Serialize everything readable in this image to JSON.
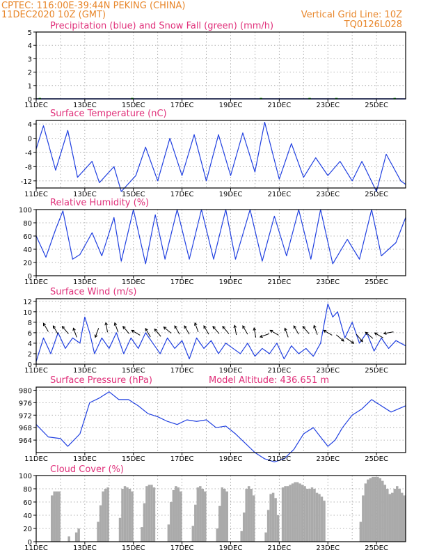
{
  "header": {
    "station": "CPTEC:   116:00E-39:44N   PEKING (CHINA)",
    "run": "11DEC2020 10Z (GMT)",
    "grid_note": "Vertical Grid Line: 10Z",
    "code": "TQ0126L028"
  },
  "colors": {
    "line": "#1f3fe0",
    "snow": "#20a020",
    "cloud": "#aaaaaa",
    "arrow": "#000000",
    "title": "#e0307a",
    "header": "#e8862a"
  },
  "x_axis": {
    "tick_labels": [
      "11DEC",
      "13DEC",
      "15DEC",
      "17DEC",
      "19DEC",
      "21DEC",
      "23DEC",
      "25DEC"
    ],
    "tick_days": [
      11,
      13,
      15,
      17,
      19,
      21,
      23,
      25
    ],
    "grid_days": [
      12,
      13,
      14,
      15,
      16,
      17,
      18,
      19,
      20,
      21,
      22,
      23,
      24,
      25
    ],
    "range": [
      11,
      26.2
    ]
  },
  "chart_data": [
    {
      "type": "line",
      "title": "Precipitation (blue) and Snow Fall (green) (mm/h)",
      "ylim": [
        0,
        5
      ],
      "yticks": [
        0,
        1,
        2,
        3,
        4,
        5
      ],
      "series": [
        {
          "name": "Precipitation",
          "x": [
            11,
            26.2
          ],
          "values": [
            0,
            0
          ]
        },
        {
          "name": "Snow Fall",
          "x": [
            11.1,
            11.2,
            14.9,
            15.0,
            20.2,
            20.3,
            22.2,
            22.3,
            23.3,
            23.4,
            25.7,
            25.8
          ],
          "values": [
            0.02,
            0.02,
            0.02,
            0.02,
            0.02,
            0.02,
            0.02,
            0.02,
            0.02,
            0.02,
            0.02,
            0.02
          ]
        }
      ]
    },
    {
      "type": "line",
      "title": "Surface Temperature (nC)",
      "ylim": [
        -14,
        5
      ],
      "yticks": [
        -12,
        -8,
        -4,
        0,
        4
      ],
      "series": [
        {
          "x": [
            11.0,
            11.3,
            11.8,
            12.3,
            12.7,
            13.3,
            13.6,
            14.2,
            14.5,
            15.1,
            15.5,
            16.0,
            16.5,
            17.0,
            17.5,
            18.0,
            18.5,
            19.0,
            19.5,
            20.0,
            20.4,
            21.0,
            21.5,
            22.0,
            22.5,
            23.0,
            23.5,
            24.0,
            24.4,
            25.0,
            25.4,
            26.0,
            26.2
          ],
          "values": [
            -3,
            3.5,
            -9,
            2.2,
            -11,
            -6.5,
            -12.5,
            -8,
            -15,
            -10.5,
            -2.5,
            -12,
            0,
            -10.5,
            1,
            -12,
            1,
            -10.5,
            1.5,
            -9.5,
            4.5,
            -11.5,
            -1.5,
            -11,
            -5.5,
            -10.5,
            -6.5,
            -12,
            -6.5,
            -15,
            -4.5,
            -12,
            -13
          ]
        }
      ]
    },
    {
      "type": "line",
      "title": "Relative Humidity (%)",
      "ylim": [
        0,
        100
      ],
      "yticks": [
        0,
        20,
        40,
        60,
        80,
        100
      ],
      "series": [
        {
          "x": [
            11.0,
            11.4,
            11.8,
            12.1,
            12.5,
            12.8,
            13.3,
            13.7,
            14.2,
            14.5,
            15.0,
            15.5,
            15.9,
            16.3,
            16.8,
            17.3,
            17.8,
            18.3,
            18.8,
            19.2,
            19.8,
            20.3,
            20.8,
            21.3,
            21.8,
            22.3,
            22.7,
            23.2,
            23.8,
            24.3,
            24.8,
            25.2,
            25.8,
            26.2
          ],
          "values": [
            60,
            28,
            70,
            98,
            25,
            32,
            65,
            30,
            88,
            22,
            100,
            18,
            92,
            25,
            100,
            25,
            100,
            25,
            100,
            25,
            100,
            22,
            90,
            30,
            100,
            25,
            100,
            18,
            55,
            25,
            100,
            30,
            50,
            88
          ]
        }
      ]
    },
    {
      "type": "line",
      "title": "Surface Wind (m/s)",
      "ylim": [
        0,
        12.5
      ],
      "yticks": [
        0,
        2,
        4,
        6,
        8,
        10,
        12
      ],
      "series": [
        {
          "x": [
            11.0,
            11.3,
            11.6,
            11.9,
            12.2,
            12.5,
            12.8,
            13.0,
            13.2,
            13.4,
            13.7,
            14.0,
            14.3,
            14.6,
            14.9,
            15.2,
            15.5,
            15.8,
            16.1,
            16.4,
            16.7,
            17.0,
            17.3,
            17.6,
            17.9,
            18.2,
            18.5,
            18.8,
            19.1,
            19.4,
            19.7,
            20.0,
            20.3,
            20.6,
            20.9,
            21.2,
            21.5,
            21.8,
            22.1,
            22.4,
            22.7,
            23.0,
            23.2,
            23.4,
            23.7,
            24.0,
            24.3,
            24.6,
            24.9,
            25.2,
            25.5,
            25.8,
            26.2
          ],
          "values": [
            0.5,
            5,
            2,
            6,
            3,
            5,
            4,
            9,
            6,
            2,
            5,
            3,
            6,
            2,
            5,
            3,
            6,
            4,
            2,
            5,
            3,
            4.5,
            1,
            5,
            3,
            4.5,
            2,
            4,
            3,
            2,
            4,
            1.5,
            3,
            2,
            4,
            1,
            3.5,
            2,
            3,
            1.5,
            4,
            11.5,
            9,
            10,
            5,
            8,
            4,
            6,
            2.5,
            5,
            3,
            4.5,
            3.5
          ]
        }
      ],
      "wind_arrows": {
        "x": [
          11.4,
          11.8,
          12.2,
          12.6,
          13.5,
          13.9,
          14.3,
          14.7,
          15.1,
          15.6,
          16.0,
          16.4,
          16.8,
          17.2,
          17.6,
          18.0,
          18.4,
          18.8,
          19.2,
          19.6,
          20.0,
          20.4,
          20.8,
          21.3,
          21.7,
          22.1,
          22.5,
          23.0,
          23.5,
          23.9,
          24.3,
          24.7,
          25.1,
          25.5
        ],
        "speed": [
          7,
          6.5,
          6.5,
          6,
          6,
          7,
          7,
          6.5,
          6,
          6,
          6,
          6.5,
          6.5,
          6.5,
          7,
          6.5,
          6.5,
          6.5,
          6.5,
          6.5,
          6,
          5.5,
          6,
          6,
          6.5,
          6.5,
          6.5,
          6,
          5,
          4.5,
          5,
          5.5,
          5.5,
          6
        ],
        "dir_deg": [
          330,
          330,
          320,
          340,
          200,
          350,
          340,
          320,
          300,
          330,
          320,
          310,
          330,
          330,
          340,
          330,
          320,
          320,
          350,
          330,
          350,
          250,
          300,
          340,
          330,
          320,
          340,
          300,
          130,
          125,
          140,
          310,
          300,
          260
        ]
      }
    },
    {
      "type": "line",
      "title": "Surface Pressure (hPa)",
      "subtitle": "Model Altitude: 436.651  m",
      "ylim": [
        960,
        981
      ],
      "yticks": [
        964,
        968,
        972,
        976,
        980
      ],
      "series": [
        {
          "x": [
            11.0,
            11.5,
            12.0,
            12.3,
            12.8,
            13.2,
            13.6,
            14.0,
            14.4,
            14.8,
            15.2,
            15.6,
            16.0,
            16.4,
            16.8,
            17.2,
            17.6,
            18.0,
            18.4,
            18.8,
            19.2,
            19.6,
            20.0,
            20.4,
            20.8,
            21.2,
            21.6,
            22.0,
            22.4,
            22.8,
            23.0,
            23.3,
            23.6,
            24.0,
            24.4,
            24.8,
            25.2,
            25.6,
            26.2
          ],
          "values": [
            969,
            965,
            964.5,
            962,
            966,
            976,
            977.5,
            979.5,
            977,
            977,
            975,
            972.5,
            971.5,
            970,
            969,
            970.5,
            970,
            970.5,
            968,
            968.5,
            966,
            963,
            960,
            958,
            957,
            958,
            961,
            966,
            968,
            964,
            962,
            964,
            968,
            972,
            974,
            977,
            975,
            973,
            975
          ]
        }
      ]
    },
    {
      "type": "bar",
      "title": "Cloud Cover (%)",
      "ylim": [
        0,
        100
      ],
      "yticks": [
        0,
        20,
        40,
        60,
        80,
        100
      ],
      "x": [
        11.65,
        11.75,
        11.85,
        11.95,
        12.35,
        12.65,
        12.75,
        13.55,
        13.65,
        13.75,
        13.85,
        13.95,
        14.45,
        14.55,
        14.65,
        14.75,
        14.85,
        14.95,
        15.35,
        15.45,
        15.55,
        15.65,
        15.75,
        15.85,
        16.45,
        16.55,
        16.65,
        16.75,
        16.85,
        16.95,
        17.45,
        17.55,
        17.65,
        17.75,
        17.85,
        17.95,
        18.45,
        18.55,
        18.65,
        18.75,
        18.85,
        19.45,
        19.55,
        19.65,
        19.75,
        19.85,
        19.95,
        20.45,
        20.55,
        20.65,
        20.75,
        20.85,
        20.95,
        21.15,
        21.25,
        21.35,
        21.45,
        21.55,
        21.65,
        21.75,
        21.85,
        21.95,
        22.05,
        22.15,
        22.25,
        22.35,
        22.45,
        22.55,
        22.65,
        22.75,
        22.85,
        24.35,
        24.45,
        24.55,
        24.65,
        24.75,
        24.85,
        24.95,
        25.05,
        25.15,
        25.25,
        25.35,
        25.45,
        25.55,
        25.65,
        25.75,
        25.85,
        25.95,
        26.05,
        26.15
      ],
      "values": [
        70,
        76,
        76,
        76,
        8,
        14,
        20,
        30,
        55,
        76,
        80,
        82,
        36,
        80,
        84,
        82,
        80,
        76,
        22,
        58,
        84,
        86,
        86,
        82,
        26,
        60,
        78,
        84,
        82,
        76,
        24,
        56,
        82,
        84,
        80,
        76,
        20,
        54,
        82,
        80,
        76,
        16,
        44,
        80,
        84,
        80,
        70,
        14,
        48,
        72,
        74,
        66,
        40,
        82,
        84,
        84,
        86,
        88,
        90,
        90,
        88,
        86,
        84,
        80,
        80,
        82,
        80,
        74,
        72,
        68,
        62,
        30,
        70,
        88,
        94,
        96,
        98,
        98,
        98,
        96,
        92,
        86,
        80,
        72,
        74,
        80,
        84,
        80,
        74,
        70
      ]
    }
  ]
}
